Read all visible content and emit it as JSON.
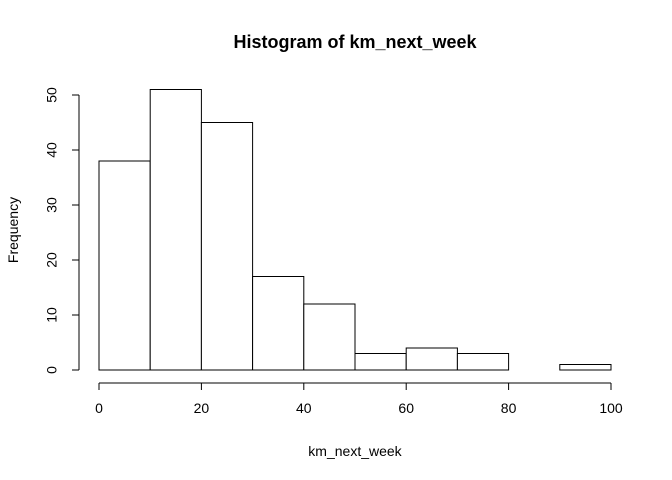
{
  "chart_data": {
    "type": "bar",
    "title": "Histogram of km_next_week",
    "xlabel": "km_next_week",
    "ylabel": "Frequency",
    "bins": [
      {
        "start": 0,
        "end": 10,
        "count": 38
      },
      {
        "start": 10,
        "end": 20,
        "count": 51
      },
      {
        "start": 20,
        "end": 30,
        "count": 45
      },
      {
        "start": 30,
        "end": 40,
        "count": 17
      },
      {
        "start": 40,
        "end": 50,
        "count": 12
      },
      {
        "start": 50,
        "end": 60,
        "count": 3
      },
      {
        "start": 60,
        "end": 70,
        "count": 4
      },
      {
        "start": 70,
        "end": 80,
        "count": 3
      },
      {
        "start": 80,
        "end": 90,
        "count": 0
      },
      {
        "start": 90,
        "end": 100,
        "count": 1
      }
    ],
    "xlim": [
      0,
      100
    ],
    "ylim": [
      0,
      50
    ],
    "x_ticks": [
      0,
      20,
      40,
      60,
      80,
      100
    ],
    "y_ticks": [
      0,
      10,
      20,
      30,
      40,
      50
    ],
    "grid": false,
    "colors": {
      "bar_fill": "#ffffff",
      "bar_stroke": "#000000"
    }
  }
}
